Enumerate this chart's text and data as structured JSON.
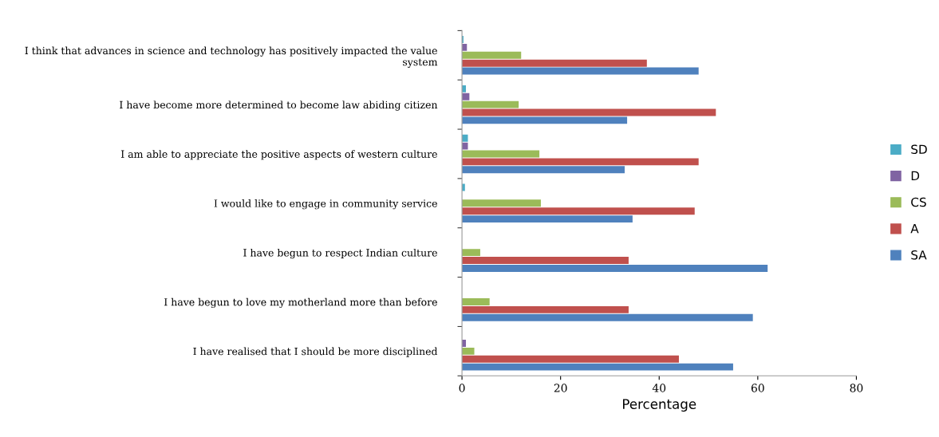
{
  "chart_data": {
    "type": "bar",
    "orientation": "horizontal",
    "xlabel": "Percentage",
    "categories": [
      "I think that advances in science and technology has positively impacted the value system",
      "I have become more determined to become law abiding citizen",
      "I am able to appreciate the positive aspects of western culture",
      "I would like to engage in community service",
      "I have begun to respect Indian culture",
      "I have begun to love my motherland more than before",
      "I have realised that I should be more disciplined"
    ],
    "series": [
      {
        "name": "SA",
        "color": "#4f81bd",
        "values": [
          48,
          33.5,
          33,
          34.6,
          62,
          59,
          55
        ]
      },
      {
        "name": "A",
        "color": "#c0504d",
        "values": [
          37.5,
          51.5,
          48,
          47.2,
          33.8,
          33.8,
          44
        ]
      },
      {
        "name": "CS",
        "color": "#9bbb59",
        "values": [
          12,
          11.5,
          15.7,
          16,
          3.7,
          5.6,
          2.5
        ]
      },
      {
        "name": "D",
        "color": "#8064a2",
        "values": [
          1,
          1.5,
          1.2,
          0,
          0,
          null,
          0.8
        ]
      },
      {
        "name": "SD",
        "color": "#4bacc6",
        "values": [
          0.3,
          0.8,
          1.2,
          0.6,
          0,
          0,
          0
        ]
      }
    ],
    "xlim": [
      0,
      80
    ],
    "xticks": [
      0,
      20,
      40,
      60,
      80
    ],
    "grid": false,
    "legend": "right"
  }
}
